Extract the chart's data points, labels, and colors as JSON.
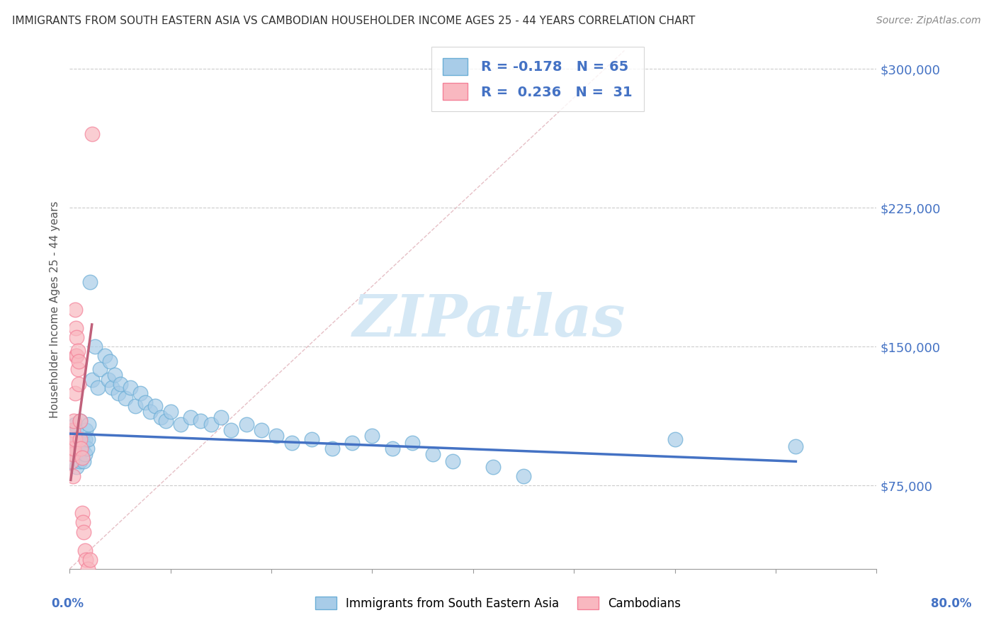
{
  "title": "IMMIGRANTS FROM SOUTH EASTERN ASIA VS CAMBODIAN HOUSEHOLDER INCOME AGES 25 - 44 YEARS CORRELATION CHART",
  "source": "Source: ZipAtlas.com",
  "ylabel": "Householder Income Ages 25 - 44 years",
  "xlim": [
    0.0,
    0.8
  ],
  "ylim": [
    30000,
    310000
  ],
  "yticks": [
    75000,
    150000,
    225000,
    300000
  ],
  "ytick_labels": [
    "$75,000",
    "$150,000",
    "$225,000",
    "$300,000"
  ],
  "xtick_left_label": "0.0%",
  "xtick_right_label": "80.0%",
  "legend_labels": [
    "Immigrants from South Eastern Asia",
    "Cambodians"
  ],
  "blue_color": "#a8cce8",
  "blue_edge_color": "#6baed6",
  "pink_color": "#f9b8c0",
  "pink_edge_color": "#f48098",
  "blue_line_color": "#4472c4",
  "pink_line_color": "#c0607a",
  "R_blue": -0.178,
  "N_blue": 65,
  "R_pink": 0.236,
  "N_pink": 31,
  "watermark_text": "ZIPatlas",
  "watermark_color": "#d5e8f5",
  "grid_color": "#cccccc",
  "grid_style": "--",
  "legend_text_color": "#4472c4",
  "ytick_color": "#4472c4",
  "xtick_color": "#4472c4",
  "blue_scatter_x": [
    0.002,
    0.003,
    0.004,
    0.005,
    0.005,
    0.006,
    0.007,
    0.008,
    0.009,
    0.01,
    0.01,
    0.011,
    0.012,
    0.013,
    0.014,
    0.015,
    0.015,
    0.016,
    0.017,
    0.018,
    0.019,
    0.02,
    0.022,
    0.025,
    0.028,
    0.03,
    0.035,
    0.038,
    0.04,
    0.042,
    0.045,
    0.048,
    0.05,
    0.055,
    0.06,
    0.065,
    0.07,
    0.075,
    0.08,
    0.085,
    0.09,
    0.095,
    0.1,
    0.11,
    0.12,
    0.13,
    0.14,
    0.15,
    0.16,
    0.175,
    0.19,
    0.205,
    0.22,
    0.24,
    0.26,
    0.28,
    0.3,
    0.32,
    0.34,
    0.36,
    0.38,
    0.42,
    0.45,
    0.6,
    0.72
  ],
  "blue_scatter_y": [
    100000,
    95000,
    88000,
    108000,
    92000,
    105000,
    85000,
    100000,
    97000,
    110000,
    88000,
    100000,
    95000,
    98000,
    88000,
    100000,
    92000,
    105000,
    95000,
    100000,
    108000,
    185000,
    132000,
    150000,
    128000,
    138000,
    145000,
    132000,
    142000,
    128000,
    135000,
    125000,
    130000,
    122000,
    128000,
    118000,
    125000,
    120000,
    115000,
    118000,
    112000,
    110000,
    115000,
    108000,
    112000,
    110000,
    108000,
    112000,
    105000,
    108000,
    105000,
    102000,
    98000,
    100000,
    95000,
    98000,
    102000,
    95000,
    98000,
    92000,
    88000,
    85000,
    80000,
    100000,
    96000
  ],
  "pink_scatter_x": [
    0.001,
    0.002,
    0.002,
    0.003,
    0.003,
    0.003,
    0.004,
    0.004,
    0.005,
    0.005,
    0.005,
    0.006,
    0.006,
    0.007,
    0.007,
    0.008,
    0.008,
    0.009,
    0.009,
    0.01,
    0.01,
    0.011,
    0.012,
    0.012,
    0.013,
    0.014,
    0.015,
    0.016,
    0.018,
    0.02,
    0.022
  ],
  "pink_scatter_y": [
    100000,
    95000,
    88000,
    92000,
    105000,
    80000,
    95000,
    110000,
    100000,
    170000,
    125000,
    145000,
    160000,
    155000,
    145000,
    138000,
    148000,
    142000,
    130000,
    110000,
    100000,
    95000,
    60000,
    90000,
    55000,
    50000,
    40000,
    35000,
    30000,
    35000,
    265000
  ]
}
